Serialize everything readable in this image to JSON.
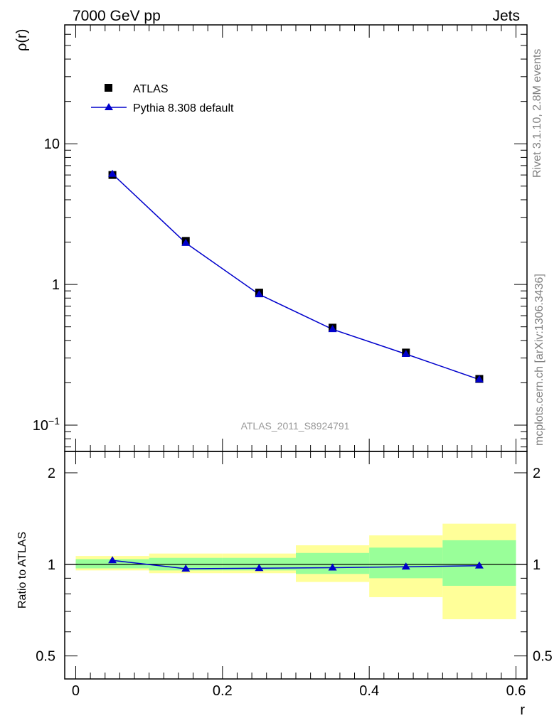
{
  "header": {
    "left": "7000 GeV pp",
    "right": "Jets"
  },
  "side_texts": {
    "rivet": "Rivet 3.1.10,  2.8M events",
    "mcplots": "mcplots.cern.ch [arXiv:1306.3436]"
  },
  "watermark": "ATLAS_2011_S8924791",
  "colors": {
    "data": "#000000",
    "mc": "#0000cc",
    "band_inner": "#99ff99",
    "band_outer": "#ffff99"
  },
  "chart_data": [
    {
      "type": "scatter",
      "panel": "main",
      "ylabel": "ρ(r)",
      "xlabel": "",
      "yscale": "log",
      "ylim": [
        0.065,
        70
      ],
      "xlim": [
        -0.015,
        0.615
      ],
      "yticks": [
        {
          "v": 0.1,
          "base": "10",
          "exp": "−1"
        },
        {
          "v": 1,
          "base": "1",
          "exp": ""
        },
        {
          "v": 10,
          "base": "10",
          "exp": ""
        }
      ],
      "legend_position": "top-left",
      "series": [
        {
          "name": "ATLAS",
          "kind": "data",
          "x": [
            0.05,
            0.15,
            0.25,
            0.35,
            0.45,
            0.55
          ],
          "y": [
            6.0,
            2.04,
            0.875,
            0.493,
            0.328,
            0.213
          ]
        },
        {
          "name": "Pythia 8.308 default",
          "kind": "mc",
          "x": [
            0.05,
            0.15,
            0.25,
            0.35,
            0.45,
            0.55
          ],
          "y": [
            6.1,
            1.97,
            0.85,
            0.48,
            0.32,
            0.211
          ]
        }
      ]
    },
    {
      "type": "line",
      "panel": "ratio",
      "ylabel": "Ratio to ATLAS",
      "xlabel": "r",
      "yscale": "log",
      "ylim": [
        0.42,
        2.35
      ],
      "xlim": [
        -0.015,
        0.615
      ],
      "xticks": [
        0,
        0.2,
        0.4,
        0.6
      ],
      "xtick_labels": [
        "0",
        "0.2",
        "0.4",
        "0.6"
      ],
      "yticks": [
        0.5,
        1,
        2
      ],
      "ytick_labels": [
        "0.5",
        "1",
        "2"
      ],
      "bins": [
        [
          0.0,
          0.1
        ],
        [
          0.1,
          0.2
        ],
        [
          0.2,
          0.3
        ],
        [
          0.3,
          0.4
        ],
        [
          0.4,
          0.5
        ],
        [
          0.5,
          0.6
        ]
      ],
      "band_inner": [
        [
          0.97,
          1.04
        ],
        [
          0.955,
          1.05
        ],
        [
          0.955,
          1.05
        ],
        [
          0.93,
          1.09
        ],
        [
          0.9,
          1.135
        ],
        [
          0.85,
          1.2
        ]
      ],
      "band_outer": [
        [
          0.955,
          1.065
        ],
        [
          0.935,
          1.085
        ],
        [
          0.935,
          1.085
        ],
        [
          0.875,
          1.155
        ],
        [
          0.78,
          1.245
        ],
        [
          0.66,
          1.36
        ]
      ],
      "series": [
        {
          "name": "Pythia 8.308 default",
          "x": [
            0.05,
            0.15,
            0.25,
            0.35,
            0.45,
            0.55
          ],
          "y": [
            1.03,
            0.967,
            0.971,
            0.975,
            0.982,
            0.99
          ]
        }
      ]
    }
  ]
}
